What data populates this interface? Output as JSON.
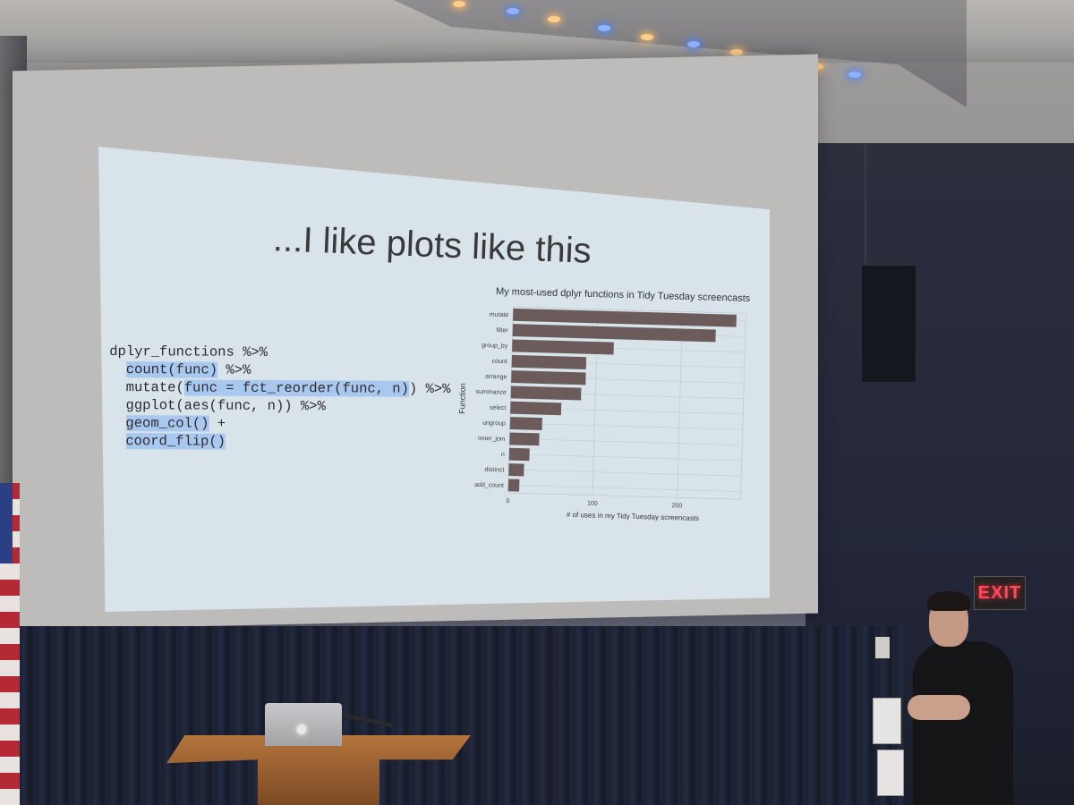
{
  "slide": {
    "title": "...I like plots like this",
    "code_lines": [
      [
        {
          "t": "dplyr_functions %>%",
          "h": false
        }
      ],
      [
        {
          "t": "  ",
          "h": false
        },
        {
          "t": "count(func)",
          "h": true
        },
        {
          "t": " %>%",
          "h": false
        }
      ],
      [
        {
          "t": "  mutate(",
          "h": false
        },
        {
          "t": "func = fct_reorder(func, n)",
          "h": true
        },
        {
          "t": ") %>%",
          "h": false
        }
      ],
      [
        {
          "t": "  ggplot(aes(func, n)) %>%",
          "h": false
        }
      ],
      [
        {
          "t": "  ",
          "h": false
        },
        {
          "t": "geom_col()",
          "h": true
        },
        {
          "t": " +",
          "h": false
        }
      ],
      [
        {
          "t": "  ",
          "h": false
        },
        {
          "t": "coord_flip()",
          "h": true
        }
      ]
    ]
  },
  "chart_data": {
    "type": "bar",
    "orientation": "horizontal",
    "title": "My most-used dplyr functions in Tidy Tuesday screencasts",
    "xlabel": "# of uses in my Tidy Tuesday screencasts",
    "ylabel": "Function",
    "categories": [
      "mutate",
      "filter",
      "group_by",
      "count",
      "arrange",
      "summarize",
      "select",
      "ungroup",
      "inner_join",
      "n",
      "distinct",
      "add_count"
    ],
    "values": [
      264,
      240,
      120,
      88,
      88,
      83,
      60,
      38,
      35,
      24,
      18,
      13
    ],
    "xticks": [
      0,
      100,
      200
    ],
    "xlim": [
      0,
      275
    ],
    "bar_color": "#6b5b5b",
    "grid": true
  },
  "room": {
    "exit_sign": "EXIT"
  }
}
